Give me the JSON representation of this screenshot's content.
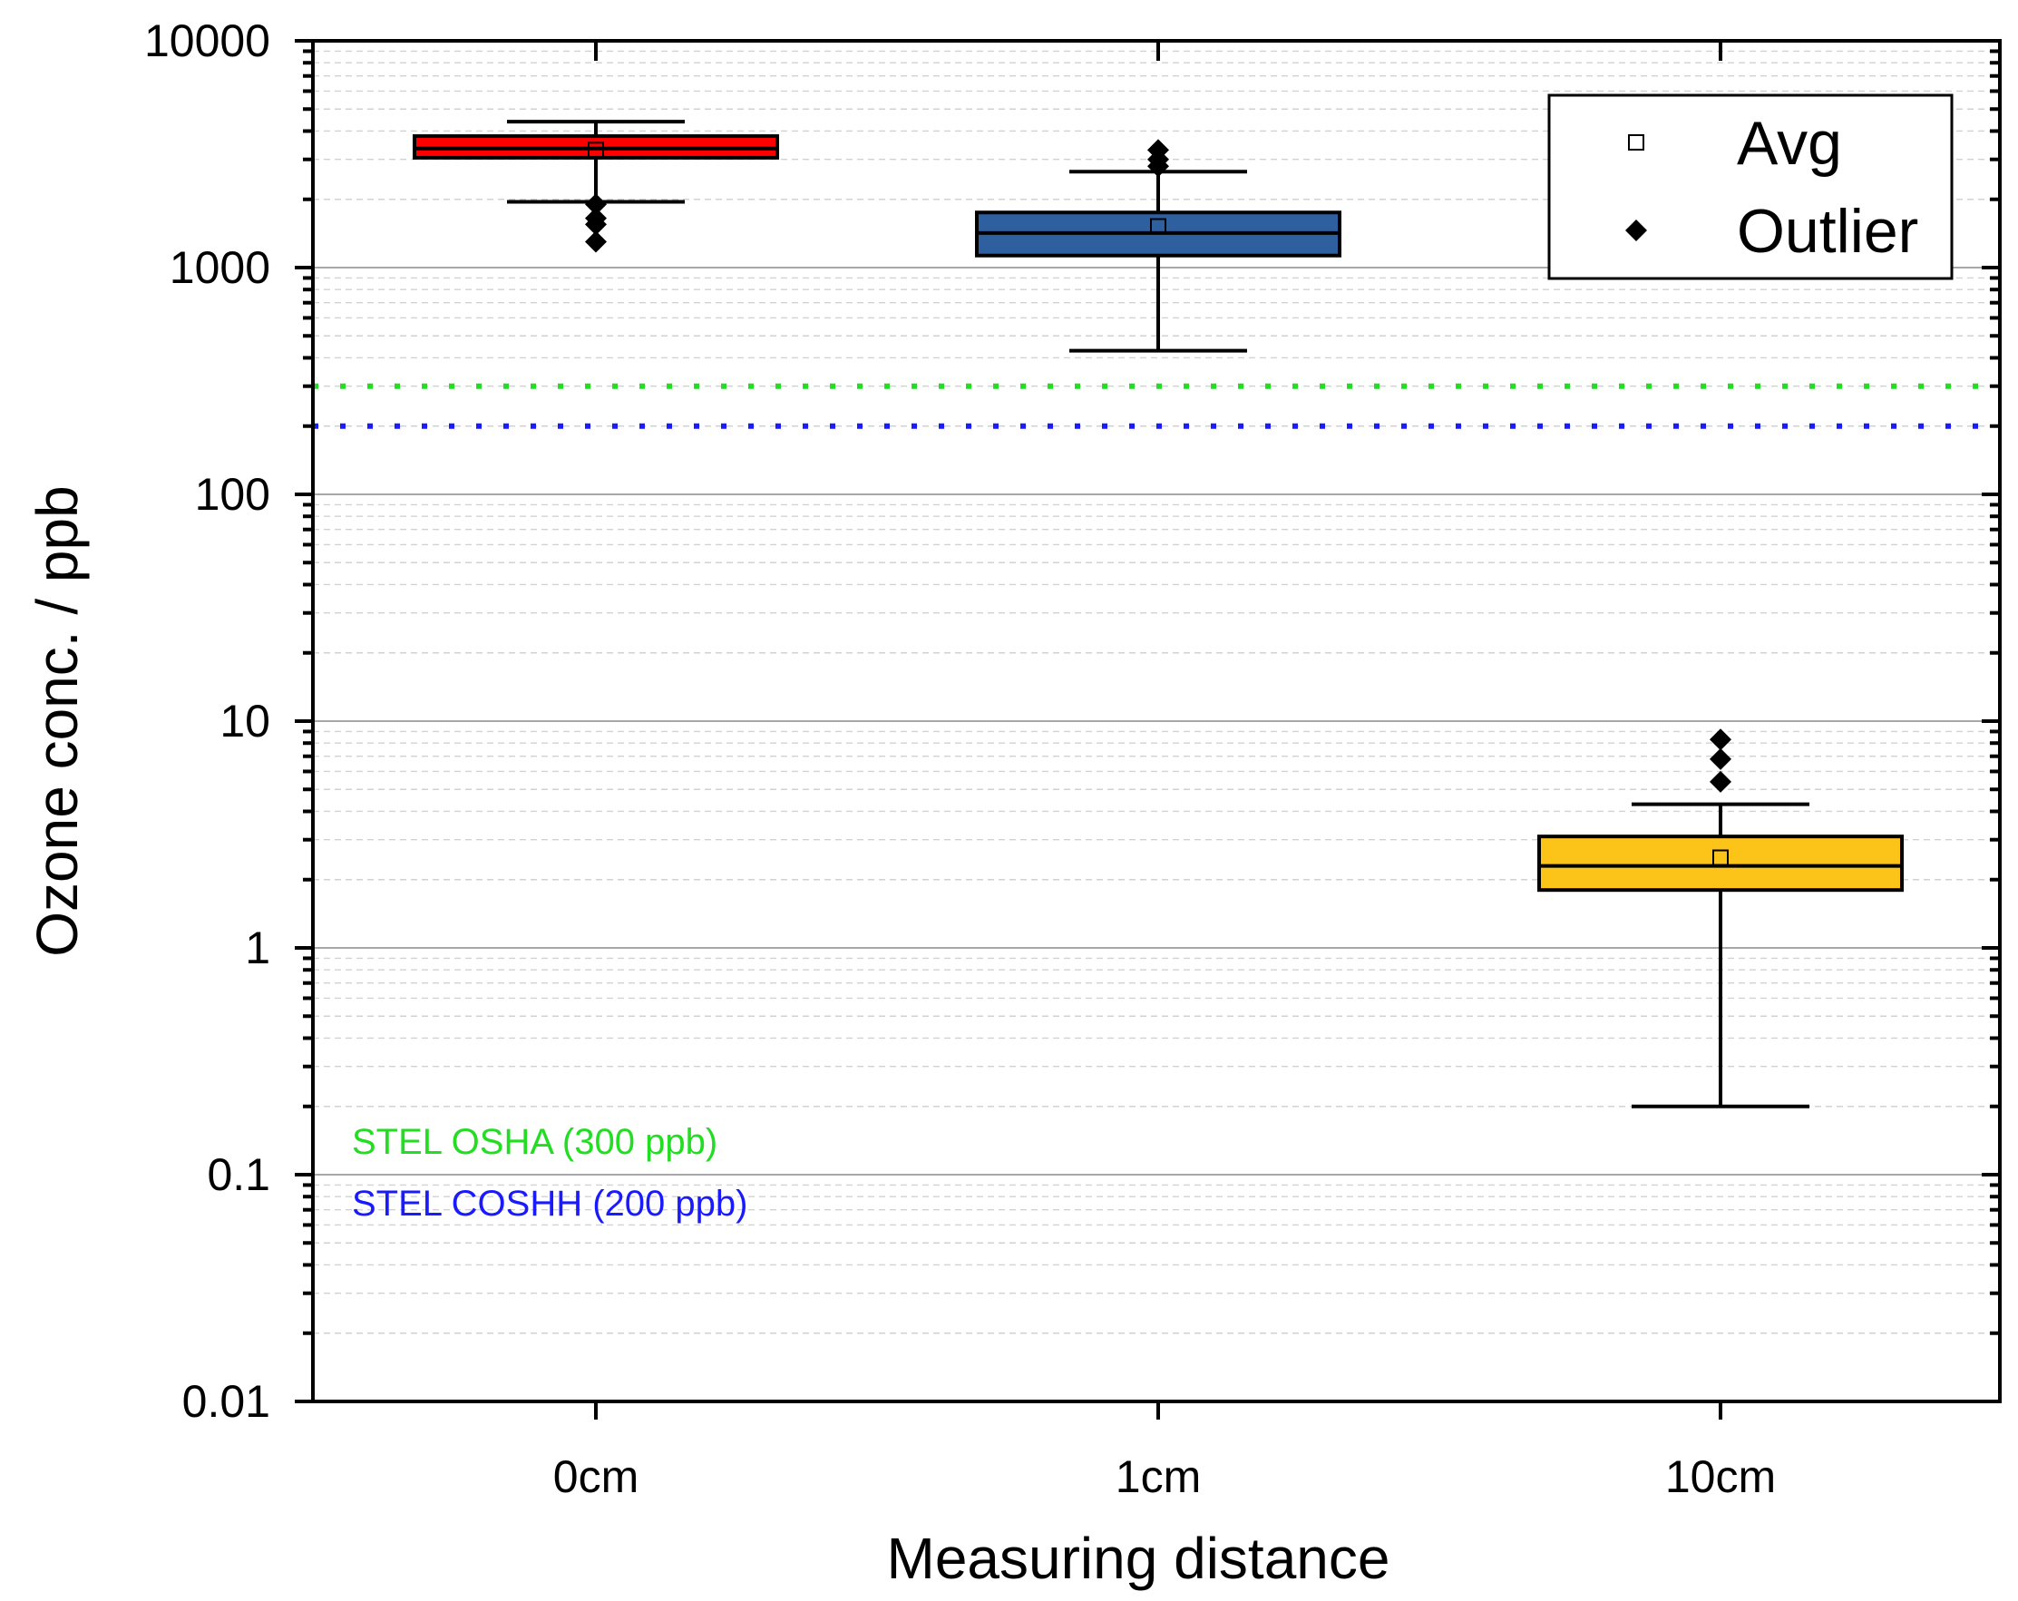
{
  "chart_data": {
    "type": "box",
    "xlabel": "Measuring distance",
    "ylabel": "Ozone conc. / ppb",
    "yscale": "log",
    "ylim": [
      0.01,
      10000
    ],
    "yticks": [
      "0.01",
      "0.1",
      "1",
      "10",
      "100",
      "1000",
      "10000"
    ],
    "categories": [
      "0cm",
      "1cm",
      "10cm"
    ],
    "boxes": [
      {
        "category": "0cm",
        "whisker_low": 1950,
        "q1": 3050,
        "median": 3350,
        "q3": 3800,
        "whisker_high": 4400,
        "mean": 3300,
        "outliers": [
          1300,
          1550,
          1650,
          1900
        ],
        "color": "#ff0000"
      },
      {
        "category": "1cm",
        "whisker_low": 430,
        "q1": 1130,
        "median": 1420,
        "q3": 1750,
        "whisker_high": 2650,
        "mean": 1520,
        "outliers": [
          2800,
          3000,
          3300
        ],
        "color": "#2e5f9e"
      },
      {
        "category": "10cm",
        "whisker_low": 0.2,
        "q1": 1.8,
        "median": 2.3,
        "q3": 3.1,
        "whisker_high": 4.3,
        "mean": 2.5,
        "outliers": [
          5.4,
          6.8,
          8.3
        ],
        "color": "#fcc419"
      }
    ],
    "reference_lines": [
      {
        "label": "STEL OSHA (300 ppb)",
        "value": 300,
        "color": "#22dd22"
      },
      {
        "label": "STEL COSHH (200 ppb)",
        "value": 200,
        "color": "#1a1aff"
      }
    ],
    "legend": {
      "position": "top-right",
      "entries": [
        {
          "label": "Avg",
          "marker": "open-square"
        },
        {
          "label": "Outlier",
          "marker": "filled-diamond"
        }
      ]
    },
    "grid": {
      "major": true,
      "minor": true
    }
  }
}
